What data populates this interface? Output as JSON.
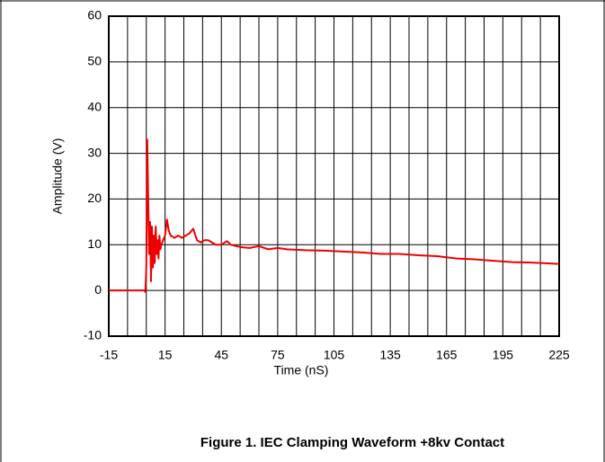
{
  "chart_data": {
    "type": "line",
    "caption": "Figure 1. IEC Clamping Waveform +8kv Contact",
    "xlabel": "Time (nS)",
    "ylabel": "Amplitude (V)",
    "xlim": [
      -15,
      225
    ],
    "ylim": [
      -10,
      60
    ],
    "xticks": [
      -15,
      15,
      45,
      75,
      105,
      135,
      165,
      195,
      225
    ],
    "minor_xticks": [
      -5,
      5,
      25,
      35,
      55,
      65,
      85,
      95,
      115,
      125,
      145,
      155,
      175,
      185,
      205,
      215
    ],
    "yticks": [
      -10,
      0,
      10,
      20,
      30,
      40,
      50,
      60
    ],
    "grid": true,
    "x": [
      -15,
      -10,
      -5,
      0,
      4,
      4.5,
      5,
      5.5,
      6,
      6.5,
      7,
      7.5,
      8,
      8.5,
      9,
      9.5,
      10,
      10.5,
      11,
      11.5,
      12,
      12.5,
      13,
      14,
      15,
      16,
      17,
      18,
      20,
      22,
      24,
      26,
      28,
      30,
      32,
      34,
      36,
      38,
      40,
      42,
      45,
      48,
      50,
      55,
      60,
      65,
      70,
      75,
      80,
      90,
      100,
      110,
      120,
      130,
      140,
      150,
      160,
      170,
      180,
      190,
      200,
      210,
      220,
      225
    ],
    "series": [
      {
        "name": "Amplitude",
        "color": "#ee0000",
        "values": [
          0,
          0,
          0,
          0,
          0,
          -0.3,
          5,
          33,
          20,
          8,
          15,
          2,
          14,
          5,
          12,
          6,
          14,
          8,
          11,
          7,
          12,
          9,
          10,
          11,
          12,
          15.5,
          13,
          12,
          11.5,
          12,
          11.5,
          12,
          12.5,
          13.5,
          11,
          10.5,
          11,
          11,
          10.5,
          10,
          10,
          10.8,
          10,
          9.5,
          9.3,
          9.7,
          9,
          9.3,
          9,
          8.8,
          8.7,
          8.5,
          8.3,
          8,
          8,
          7.7,
          7.5,
          7,
          6.8,
          6.5,
          6.2,
          6.1,
          5.9,
          5.8
        ]
      }
    ]
  }
}
